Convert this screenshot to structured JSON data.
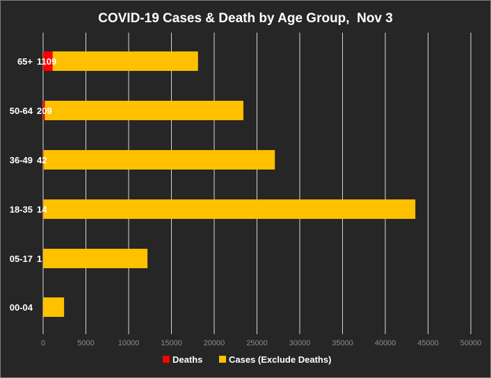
{
  "chart_data": {
    "type": "bar",
    "orientation": "horizontal",
    "stacked": true,
    "title": "COVID-19 Cases & Death by Age Group,  Nov 3",
    "xlabel": "",
    "ylabel": "",
    "categories": [
      "65+",
      "50-64",
      "36-49",
      "18-35",
      "05-17",
      "00-04"
    ],
    "series": [
      {
        "name": "Deaths",
        "color": "#ff0000",
        "values": [
          1109,
          209,
          42,
          14,
          1,
          0
        ],
        "data_labels": [
          "1109",
          "209",
          "42",
          "14",
          "1",
          ""
        ]
      },
      {
        "name": "Cases (Exclude Deaths)",
        "color": "#ffc000",
        "values": [
          17000,
          23200,
          27050,
          43500,
          12200,
          2450
        ]
      }
    ],
    "xlim": [
      0,
      50000
    ],
    "xticks": [
      0,
      5000,
      10000,
      15000,
      20000,
      25000,
      30000,
      35000,
      40000,
      45000,
      50000
    ],
    "xtick_labels": [
      "0",
      "5000",
      "10000",
      "15000",
      "20000",
      "25000",
      "30000",
      "35000",
      "40000",
      "45000",
      "50000"
    ],
    "grid": "vertical",
    "legend": "bottom",
    "background": "#262626",
    "gridline_color": "#d9d9d9"
  }
}
